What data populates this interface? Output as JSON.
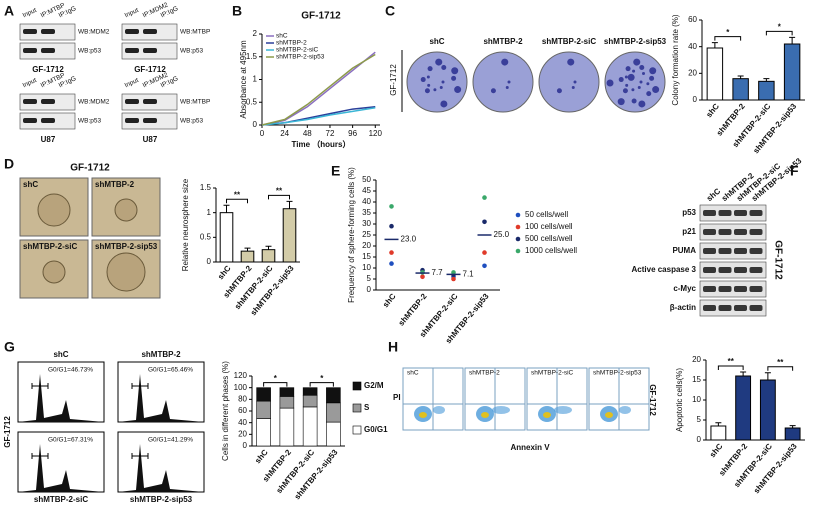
{
  "panel_a": {
    "panel": "A",
    "blots": [
      {
        "lanes": [
          "Input",
          "IP:MTBP",
          "IP:IgG"
        ],
        "rows": [
          "WB:MDM2",
          "WB:p53"
        ],
        "cell": "GF-1712"
      },
      {
        "lanes": [
          "Input",
          "IP:MDM2",
          "IP:IgG"
        ],
        "rows": [
          "WB:MTBP",
          "WB:p53"
        ],
        "cell": "GF-1712"
      },
      {
        "lanes": [
          "Input",
          "IP:MTBP",
          "IP:IgG"
        ],
        "rows": [
          "WB:MDM2",
          "WB:p53"
        ],
        "cell": "U87"
      },
      {
        "lanes": [
          "Input",
          "IP:MDM2",
          "IP:IgG"
        ],
        "rows": [
          "WB:MTBP",
          "WB:p53"
        ],
        "cell": "U87"
      }
    ]
  },
  "panel_c_images": {
    "panel": "C",
    "labels": [
      "shC",
      "shMTBP-2",
      "shMTBP-2-siC",
      "shMTBP-2-sip53"
    ],
    "cell": "GF-1712"
  },
  "panel_d_images": {
    "panel": "D",
    "title": "GF-1712",
    "labels": [
      "shC",
      "shMTBP-2",
      "shMTBP-2-siC",
      "shMTBP-2-sip53"
    ]
  },
  "panel_f": {
    "panel": "F",
    "lanes": [
      "shC",
      "shMTBP-2",
      "shMTBP-2-siC",
      "shMTBP-2-sip53"
    ],
    "rows": [
      "p53",
      "p21",
      "PUMA",
      "Active caspase 3",
      "c-Myc",
      "β-actin"
    ],
    "cell": "GF-1712"
  },
  "panel_g_hist": {
    "panel": "G",
    "titles": [
      "shC",
      "shMTBP-2",
      "shMTBP-2-siC",
      "shMTBP-2-sip53"
    ],
    "gates": [
      "G0/G1=46.73%",
      "G0/G1=65.46%",
      "G0/G1=67.31%",
      "G0/G1=41.29%"
    ],
    "cell": "GF-1712"
  },
  "panel_h_flow": {
    "panel": "H",
    "titles": [
      "shC",
      "shMTBP-2",
      "shMTBP-2-siC",
      "shMTBP-2-sip53"
    ],
    "y_label": "PI",
    "x_label": "Annexin V",
    "cell": "GF-1712"
  },
  "chart_data": [
    {
      "type": "line",
      "panel": "B",
      "title": "GF-1712",
      "x_label": "Time （hours）",
      "y_label": "Absorbance at 495nm",
      "x": [
        0,
        24,
        48,
        72,
        96,
        120
      ],
      "xlim": [
        0,
        125
      ],
      "xticks": [
        0,
        24,
        48,
        72,
        96,
        120
      ],
      "ylim": [
        0,
        2
      ],
      "yticks": [
        0,
        0.5,
        1,
        1.5,
        2
      ],
      "series": [
        {
          "name": "shC",
          "color": "#8a6fc0",
          "values": [
            0,
            0.1,
            0.4,
            0.8,
            1.2,
            1.6
          ]
        },
        {
          "name": "shMTBP-2",
          "color": "#2a3f9a",
          "values": [
            0,
            0.05,
            0.15,
            0.25,
            0.35,
            0.4
          ]
        },
        {
          "name": "shMTBP-2-siC",
          "color": "#3bb6d6",
          "values": [
            0,
            0.05,
            0.12,
            0.22,
            0.3,
            0.38
          ]
        },
        {
          "name": "shMTBP-2-sip53",
          "color": "#8c9a4a",
          "values": [
            0,
            0.12,
            0.45,
            0.85,
            1.25,
            1.55
          ]
        }
      ]
    },
    {
      "type": "bar",
      "y_label": "Colony formation rate (%)",
      "categories": [
        "shC",
        "shMTBP-2",
        "shMTBP-2-siC",
        "shMTBP-2-sip53"
      ],
      "values": [
        39,
        16,
        14,
        42
      ],
      "errors": [
        4,
        2,
        2,
        5
      ],
      "colors": [
        "#ffffff",
        "#3a6db0",
        "#3a6db0",
        "#3a6db0"
      ],
      "ylim": [
        0,
        60
      ],
      "yticks": [
        0,
        20,
        40,
        60
      ],
      "annotations": [
        "*",
        "*"
      ]
    },
    {
      "type": "bar",
      "y_label": "Relative neurosphere size",
      "categories": [
        "shC",
        "shMTBP-2",
        "shMTBP-2-siC",
        "shMTBP-2-sip53"
      ],
      "values": [
        1.0,
        0.22,
        0.25,
        1.08
      ],
      "errors": [
        0.15,
        0.06,
        0.07,
        0.15
      ],
      "colors": [
        "#ffffff",
        "#d3cca8",
        "#d3cca8",
        "#d3cca8"
      ],
      "ylim": [
        0,
        1.5
      ],
      "yticks": [
        0,
        0.5,
        1,
        1.5
      ],
      "annotations": [
        "**",
        "**"
      ]
    },
    {
      "type": "dot",
      "panel": "E",
      "y_label": "Frequency of sphere-forming cells (%)",
      "categories": [
        "shC",
        "shMTBP-2",
        "shMTBP-2-siC",
        "shMTBP-2-sip53"
      ],
      "ylim": [
        0,
        50
      ],
      "yticks": [
        0,
        5,
        10,
        15,
        20,
        25,
        30,
        35,
        40,
        45,
        50
      ],
      "means": [
        23.0,
        7.7,
        7.1,
        25.0
      ],
      "mean_labels": [
        "23.0",
        "7.7",
        "7.1",
        "25.0"
      ],
      "series": [
        {
          "name": "50 cells/well",
          "color": "#1f4fbf",
          "values": [
            12,
            8,
            6,
            11
          ]
        },
        {
          "name": "100 cells/well",
          "color": "#e03a2a",
          "values": [
            17,
            6,
            5,
            17
          ]
        },
        {
          "name": "500 cells/well",
          "color": "#1a2a6a",
          "values": [
            29,
            9,
            7,
            31
          ]
        },
        {
          "name": "1000 cells/well",
          "color": "#3aa86a",
          "values": [
            38,
            8,
            8,
            42
          ]
        }
      ]
    },
    {
      "type": "stacked_bar",
      "y_label": "Cells in different phases (%)",
      "categories": [
        "shC",
        "shMTBP-2",
        "shMTBP-2-siC",
        "shMTBP-2-sip53"
      ],
      "ylim": [
        0,
        120
      ],
      "yticks": [
        0,
        20,
        40,
        60,
        80,
        100,
        120
      ],
      "annotations": [
        "*",
        "*"
      ],
      "series": [
        {
          "name": "G2/M",
          "color": "#111111",
          "values": [
            23,
            15,
            13,
            26
          ]
        },
        {
          "name": "S",
          "color": "#9a9a9a",
          "values": [
            30,
            20,
            20,
            33
          ]
        },
        {
          "name": "G0/G1",
          "color": "#ffffff",
          "values": [
            47,
            65,
            67,
            41
          ]
        }
      ]
    },
    {
      "type": "bar",
      "y_label": "Apoptotic cells(%)",
      "categories": [
        "shC",
        "shMTBP-2",
        "shMTBP-2-siC",
        "shMTBP-2-sip53"
      ],
      "values": [
        3.5,
        16,
        15,
        3
      ],
      "errors": [
        0.8,
        1,
        1.8,
        0.6
      ],
      "colors": [
        "#ffffff",
        "#1f3a80",
        "#1f3a80",
        "#1f3a80"
      ],
      "ylim": [
        0,
        20
      ],
      "yticks": [
        0,
        5,
        10,
        15,
        20
      ],
      "annotations": [
        "**",
        "**"
      ]
    }
  ]
}
